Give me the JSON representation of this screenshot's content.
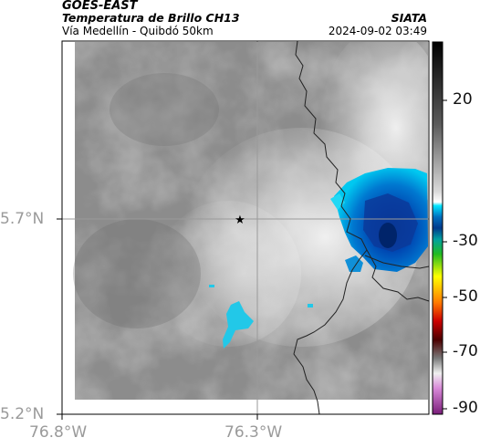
{
  "header": {
    "satellite": "GOES-EAST",
    "product": "Temperatura de Brillo CH13",
    "region": "Vía Medellín - Quibdó 50km",
    "organization": "SIATA",
    "timestamp": "2024-09-02 03:49"
  },
  "map": {
    "lat_ticks": [
      "5.7°N",
      "5.2°N"
    ],
    "lon_ticks": [
      "76.8°W",
      "76.3°W"
    ],
    "marker": "star-icon",
    "colors": {
      "frame": "#000000",
      "grid": "#9a9a9a",
      "coast": "#222222"
    }
  },
  "colorbar": {
    "ticks": [
      "20",
      "-30",
      "-50",
      "-70",
      "-90"
    ],
    "colors": [
      "#000000",
      "#4a4a4a",
      "#8f8f8f",
      "#d6d6d6",
      "#ffffff",
      "#00e5ff",
      "#0070c0",
      "#003a8c",
      "#22aa22",
      "#ffff00",
      "#ff6600",
      "#cc0000",
      "#4b0000",
      "#aaaaaa",
      "#ffffff",
      "#cc66cc",
      "#7a1d7a"
    ]
  }
}
